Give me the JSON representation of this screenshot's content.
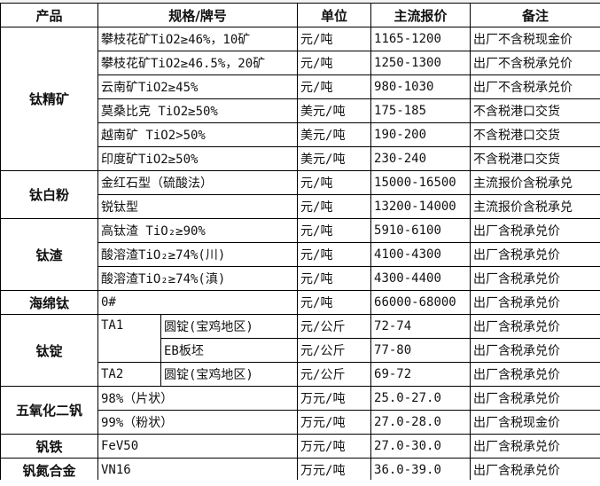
{
  "headers": {
    "product": "产品",
    "spec": "规格/牌号",
    "unit": "单位",
    "price": "主流报价",
    "note": "备注"
  },
  "groups": {
    "g0": {
      "product": "钛精矿",
      "rows": [
        {
          "spec": "攀枝花矿TiO2≥46%，10矿",
          "unit": "元/吨",
          "price": "1165-1200",
          "note": "出厂不含税现金价"
        },
        {
          "spec": "攀枝花矿TiO2≥46.5%，20矿",
          "unit": "元/吨",
          "price": "1250-1300",
          "note": "出厂不含税承兑价"
        },
        {
          "spec": "云南矿TiO2≥45%",
          "unit": "元/吨",
          "price": "980-1030",
          "note": "出厂不含税承兑价"
        },
        {
          "spec": "莫桑比克 TiO2≥50%",
          "unit": "美元/吨",
          "price": "175-185",
          "note": "不含税港口交货"
        },
        {
          "spec": "越南矿 TiO2>50%",
          "unit": "美元/吨",
          "price": "190-200",
          "note": "不含税港口交货"
        },
        {
          "spec": "印度矿TiO2≥50%",
          "unit": "美元/吨",
          "price": "230-240",
          "note": "不含税港口交货"
        }
      ]
    },
    "g1": {
      "product": "钛白粉",
      "rows": [
        {
          "spec": "金红石型（硫酸法）",
          "unit": "元/吨",
          "price": "15000-16500",
          "note": "主流报价含税承兑"
        },
        {
          "spec": "锐钛型",
          "unit": "元/吨",
          "price": "13200-14000",
          "note": "主流报价含税承兑"
        }
      ]
    },
    "g2": {
      "product": "钛渣",
      "rows": [
        {
          "spec": "高钛渣 TiO₂≥90%",
          "unit": "元/吨",
          "price": "5910-6100",
          "note": "出厂含税承兑价"
        },
        {
          "spec": "酸溶渣TiO₂≥74%(川)",
          "unit": "元/吨",
          "price": "4100-4300",
          "note": "出厂含税承兑价"
        },
        {
          "spec": "酸溶渣TiO₂≥74%(滇)",
          "unit": "元/吨",
          "price": "4300-4400",
          "note": "出厂含税承兑价"
        }
      ]
    },
    "g3": {
      "product": "海绵钛",
      "rows": [
        {
          "spec": "0#",
          "unit": "元/吨",
          "price": "66000-68000",
          "note": "出厂含税承兑价"
        }
      ]
    },
    "g4": {
      "product": "钛锭",
      "grade1": "TA1",
      "grade2": "TA2",
      "rows": [
        {
          "spec": "圆锭(宝鸡地区)",
          "unit": "元/公斤",
          "price": "72-74",
          "note": "出厂含税承兑价"
        },
        {
          "spec": "EB板坯",
          "unit": "元/公斤",
          "price": "77-80",
          "note": "出厂含税承兑价"
        },
        {
          "spec": "圆锭(宝鸡地区)",
          "unit": "元/公斤",
          "price": "69-72",
          "note": "出厂含税承兑价"
        }
      ]
    },
    "g5": {
      "product": "五氧化二钒",
      "rows": [
        {
          "spec": "98%（片状）",
          "unit": "万元/吨",
          "price": "25.0-27.0",
          "note": "出厂含税承兑价"
        },
        {
          "spec": "99%（粉状）",
          "unit": "万元/吨",
          "price": "27.0-28.0",
          "note": "出厂含税现金价"
        }
      ]
    },
    "g6": {
      "product": "钒铁",
      "rows": [
        {
          "spec": "FeV50",
          "unit": "万元/吨",
          "price": "27.0-30.0",
          "note": "出厂含税承兑价"
        }
      ]
    },
    "g7": {
      "product": "钒氮合金",
      "rows": [
        {
          "spec": "VN16",
          "unit": "万元/吨",
          "price": "36.0-39.0",
          "note": "出厂含税承兑价"
        }
      ]
    }
  }
}
